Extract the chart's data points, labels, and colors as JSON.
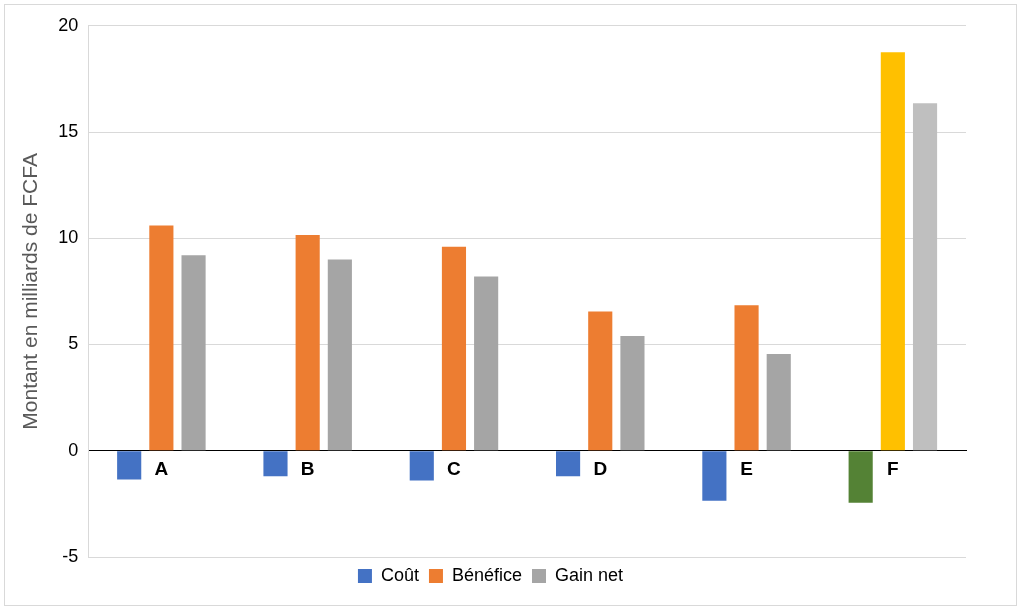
{
  "chart_data": {
    "type": "bar",
    "ylabel": "Montant en milliards de FCFA",
    "categories": [
      "A",
      "B",
      "C",
      "D",
      "E",
      "F"
    ],
    "series": [
      {
        "name": "Coût",
        "color": "#4472c4",
        "colors": [
          "#4472c4",
          "#4472c4",
          "#4472c4",
          "#4472c4",
          "#4472c4",
          "#548235"
        ],
        "values": [
          -1.35,
          -1.2,
          -1.4,
          -1.2,
          -2.35,
          -2.45
        ]
      },
      {
        "name": "Bénéfice",
        "color": "#ed7d31",
        "colors": [
          "#ed7d31",
          "#ed7d31",
          "#ed7d31",
          "#ed7d31",
          "#ed7d31",
          "#ffc000"
        ],
        "values": [
          10.6,
          10.15,
          9.6,
          6.55,
          6.85,
          18.75
        ]
      },
      {
        "name": "Gain net",
        "color": "#a5a5a5",
        "colors": [
          "#a5a5a5",
          "#a5a5a5",
          "#a5a5a5",
          "#a5a5a5",
          "#a5a5a5",
          "#bfbfbf"
        ],
        "values": [
          9.2,
          9.0,
          8.2,
          5.4,
          4.55,
          16.35
        ]
      }
    ],
    "ylim": [
      -5,
      20
    ],
    "yticks": [
      -5,
      0,
      5,
      10,
      15,
      20
    ],
    "grid": "y",
    "legend": "bottom"
  }
}
